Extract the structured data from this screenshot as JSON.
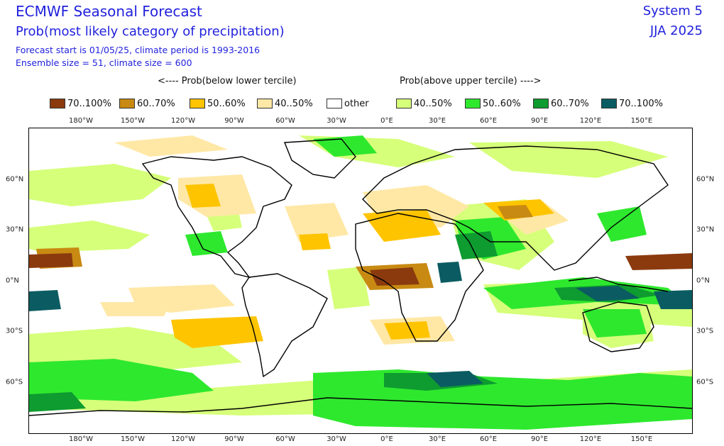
{
  "header": {
    "title": "ECMWF Seasonal Forecast",
    "subtitle": "Prob(most likely category of precipitation)",
    "info_line1": "Forecast start is 01/05/25, climate period is 1993-2016",
    "info_line2": "Ensemble size = 51, climate size = 600",
    "system": "System 5",
    "season": "JJA 2025"
  },
  "tercile": {
    "below": "<---- Prob(below lower tercile)",
    "above": "Prob(above upper tercile) ---->"
  },
  "legend": [
    {
      "label": "70..100%",
      "color": "#8b3a0e"
    },
    {
      "label": "60..70%",
      "color": "#c88a12"
    },
    {
      "label": "50..60%",
      "color": "#ffc400"
    },
    {
      "label": "40..50%",
      "color": "#ffe8a6"
    },
    {
      "label": "other",
      "color": "#ffffff"
    },
    {
      "label": "40..50%",
      "color": "#d6ff7a"
    },
    {
      "label": "50..60%",
      "color": "#2ee82e"
    },
    {
      "label": "60..70%",
      "color": "#0e9b30"
    },
    {
      "label": "70..100%",
      "color": "#0b5c62"
    }
  ],
  "axes": {
    "lon_labels": [
      "180°W",
      "150°W",
      "120°W",
      "90°W",
      "60°W",
      "30°W",
      "0°E",
      "30°E",
      "60°E",
      "90°E",
      "120°E",
      "150°E"
    ],
    "lat_labels": [
      "60°N",
      "30°N",
      "0°N",
      "30°S",
      "60°S"
    ]
  }
}
